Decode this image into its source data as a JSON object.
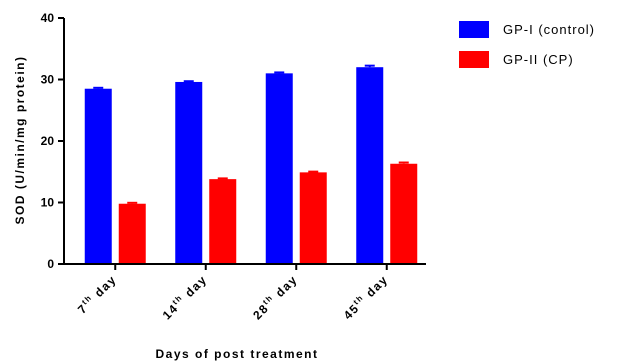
{
  "chart_data": {
    "type": "bar",
    "categories": [
      {
        "base": "7",
        "sup": "th",
        "suffix": " day"
      },
      {
        "base": "14",
        "sup": "th",
        "suffix": " day"
      },
      {
        "base": "28",
        "sup": "th",
        "suffix": " day"
      },
      {
        "base": "45",
        "sup": "th",
        "suffix": " day"
      }
    ],
    "series": [
      {
        "name": "GP-I (control)",
        "values": [
          28.5,
          29.6,
          31.0,
          32.0
        ],
        "errors": [
          0.15,
          0.12,
          0.15,
          0.25
        ],
        "color": "#0000ff"
      },
      {
        "name": "GP-II (CP)",
        "values": [
          9.8,
          13.8,
          14.9,
          16.3
        ],
        "errors": [
          0.15,
          0.12,
          0.12,
          0.2
        ],
        "color": "#ff0000"
      }
    ],
    "ylabel": "SOD (U/min/mg protein)",
    "xlabel": "Days of post treatment",
    "ylim": [
      0,
      40
    ],
    "yticks": [
      0,
      10,
      20,
      30,
      40
    ],
    "grid": false,
    "legend": "top-right"
  }
}
